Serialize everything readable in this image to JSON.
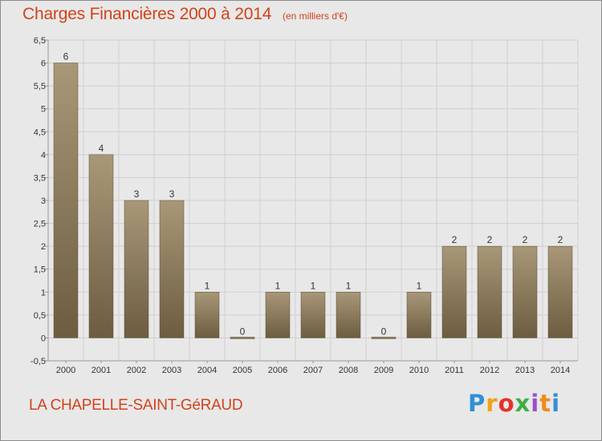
{
  "header": {
    "title": "Charges Financières 2000 à 2014",
    "subtitle": "(en milliers d'€)"
  },
  "footer": {
    "commune": "LA CHAPELLE-SAINT-GéRAUD",
    "logo": "Proxiti",
    "logo_colors": [
      "#2f8fd8",
      "#f2a21a",
      "#e5322a",
      "#3cb043",
      "#9b4fc8",
      "#f08a1c",
      "#2f8fd8"
    ]
  },
  "colors": {
    "bar_top": "#a89878",
    "bar_bottom": "#6d5c40",
    "grid": "#cfcfcf",
    "axis": "#999999",
    "plot_bg": "#e8e8e8"
  },
  "chart_data": {
    "type": "bar",
    "title": "Charges Financières 2000 à 2014",
    "subtitle": "(en milliers d'€)",
    "xlabel": "",
    "ylabel": "",
    "categories": [
      "2000",
      "2001",
      "2002",
      "2003",
      "2004",
      "2005",
      "2006",
      "2007",
      "2008",
      "2009",
      "2010",
      "2011",
      "2012",
      "2013",
      "2014"
    ],
    "values": [
      6,
      4,
      3,
      3,
      1,
      0,
      1,
      1,
      1,
      0,
      1,
      2,
      2,
      2,
      2
    ],
    "data_labels": [
      "6",
      "4",
      "3",
      "3",
      "1",
      "0",
      "1",
      "1",
      "1",
      "0",
      "1",
      "2",
      "2",
      "2",
      "2"
    ],
    "ylim": [
      -0.5,
      6.5
    ],
    "yticks": [
      "-0,5",
      "0",
      "0,5",
      "1",
      "1,5",
      "2",
      "2,5",
      "3",
      "3,5",
      "4",
      "4,5",
      "5",
      "5,5",
      "6",
      "6,5"
    ],
    "ytick_values": [
      -0.5,
      0,
      0.5,
      1,
      1.5,
      2,
      2.5,
      3,
      3.5,
      4,
      4.5,
      5,
      5.5,
      6,
      6.5
    ],
    "grid": true,
    "legend": "none"
  }
}
